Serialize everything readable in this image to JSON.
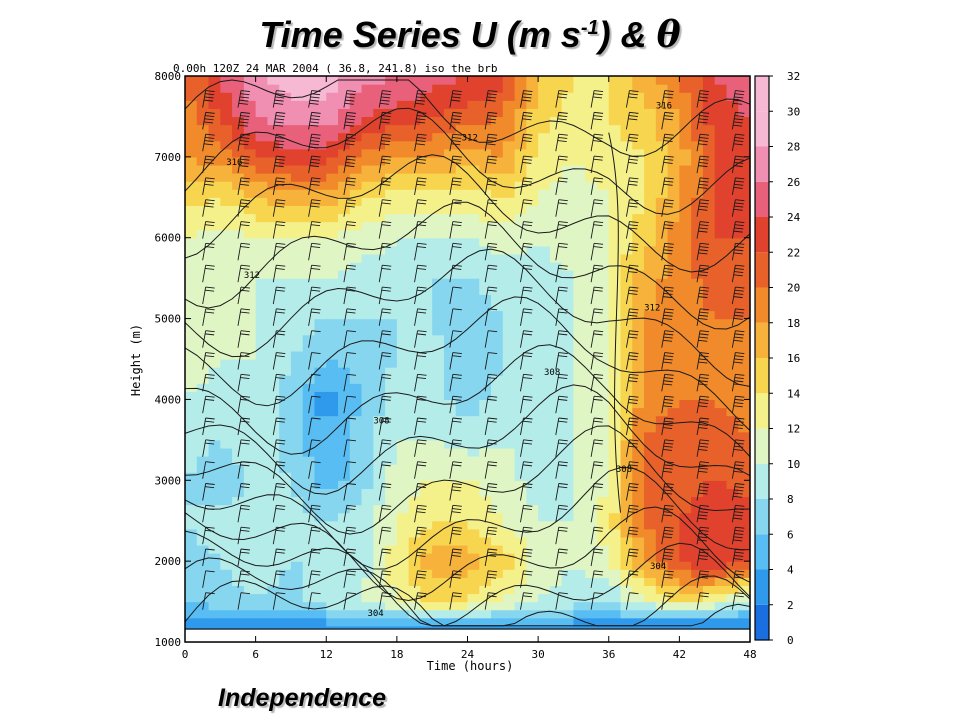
{
  "title": {
    "main": "Time Series U (m s",
    "superscript": "-1",
    "suffix": ") & ",
    "theta": "θ"
  },
  "footer": "Independence",
  "plot_header": "0.00h   120Z 24 MAR 2004 ( 36.8, 241.8)    iso  the  brb",
  "colors": {
    "scale": [
      "#1a6fe0",
      "#2f9aec",
      "#58bdf2",
      "#86d6f0",
      "#b4ecea",
      "#dff6c4",
      "#f4f08a",
      "#f8d54f",
      "#f6b23a",
      "#f08a2a",
      "#e8612a",
      "#e0422e",
      "#e8607a",
      "#f08fb2",
      "#f6b8d2"
    ]
  },
  "chart_data": {
    "type": "heatmap",
    "title": "Time Series U (m s-1) & θ",
    "xlabel": "Time (hours)",
    "ylabel": "Height (m)",
    "xlim": [
      0,
      48
    ],
    "ylim": [
      1000,
      8000
    ],
    "xticks": [
      "0",
      "6",
      "12",
      "18",
      "24",
      "30",
      "36",
      "42",
      "48"
    ],
    "yticks": [
      "1000",
      "2000",
      "3000",
      "4000",
      "5000",
      "6000",
      "7000",
      "8000"
    ],
    "colorbar": {
      "min": 0,
      "max": 32,
      "step": 2,
      "labels": [
        "0",
        "2",
        "4",
        "6",
        "8",
        "10",
        "12",
        "14",
        "16",
        "18",
        "20",
        "22",
        "24",
        "26",
        "28",
        "30",
        "32"
      ]
    },
    "hours": [
      0,
      3,
      6,
      9,
      12,
      15,
      18,
      21,
      24,
      27,
      30,
      33,
      36,
      39,
      42,
      45,
      48
    ],
    "heights": [
      1200,
      1500,
      2000,
      2500,
      3000,
      3500,
      4000,
      4500,
      5000,
      5500,
      6000,
      6500,
      7000,
      7500,
      8000
    ],
    "wind_speed": [
      [
        3,
        3,
        3,
        3,
        3,
        3,
        3,
        3,
        3,
        3,
        3,
        3,
        3,
        2,
        2,
        2,
        2
      ],
      [
        6,
        7,
        8,
        7,
        9,
        10,
        12,
        15,
        14,
        12,
        10,
        9,
        8,
        11,
        14,
        12,
        9
      ],
      [
        7,
        8,
        9,
        8,
        8,
        9,
        13,
        17,
        17,
        15,
        11,
        10,
        12,
        18,
        22,
        24,
        22
      ],
      [
        8,
        9,
        8,
        9,
        8,
        9,
        12,
        14,
        14,
        12,
        10,
        10,
        13,
        20,
        22,
        24,
        23
      ],
      [
        8,
        6,
        9,
        8,
        5,
        7,
        11,
        12,
        12,
        11,
        9,
        10,
        12,
        21,
        21,
        22,
        21
      ],
      [
        9,
        8,
        9,
        7,
        4,
        7,
        10,
        10,
        9,
        10,
        9,
        10,
        12,
        20,
        21,
        21,
        20
      ],
      [
        10,
        9,
        9,
        7,
        3,
        6,
        9,
        9,
        7,
        9,
        9,
        10,
        12,
        19,
        20,
        20,
        19
      ],
      [
        11,
        10,
        10,
        8,
        6,
        7,
        8,
        9,
        6,
        8,
        9,
        10,
        12,
        18,
        19,
        19,
        19
      ],
      [
        11,
        11,
        10,
        9,
        8,
        8,
        8,
        8,
        6,
        8,
        9,
        10,
        12,
        18,
        19,
        20,
        20
      ],
      [
        11,
        10,
        10,
        10,
        10,
        9,
        9,
        8,
        8,
        9,
        9,
        10,
        12,
        17,
        19,
        21,
        21
      ],
      [
        12,
        11,
        12,
        12,
        12,
        11,
        10,
        10,
        10,
        11,
        10,
        11,
        12,
        15,
        19,
        22,
        22
      ],
      [
        15,
        14,
        16,
        17,
        17,
        14,
        13,
        13,
        13,
        14,
        12,
        11,
        12,
        14,
        18,
        22,
        22
      ],
      [
        18,
        19,
        22,
        23,
        23,
        19,
        18,
        18,
        17,
        18,
        13,
        12,
        13,
        14,
        17,
        22,
        22
      ],
      [
        19,
        22,
        26,
        27,
        27,
        24,
        23,
        22,
        21,
        20,
        15,
        13,
        14,
        15,
        18,
        23,
        24
      ],
      [
        20,
        24,
        28,
        29,
        29,
        27,
        26,
        25,
        24,
        23,
        16,
        14,
        14,
        17,
        20,
        24,
        26
      ]
    ],
    "theta_contour_labels": [
      "304",
      "308",
      "312",
      "316"
    ],
    "annotation": "Independence"
  }
}
